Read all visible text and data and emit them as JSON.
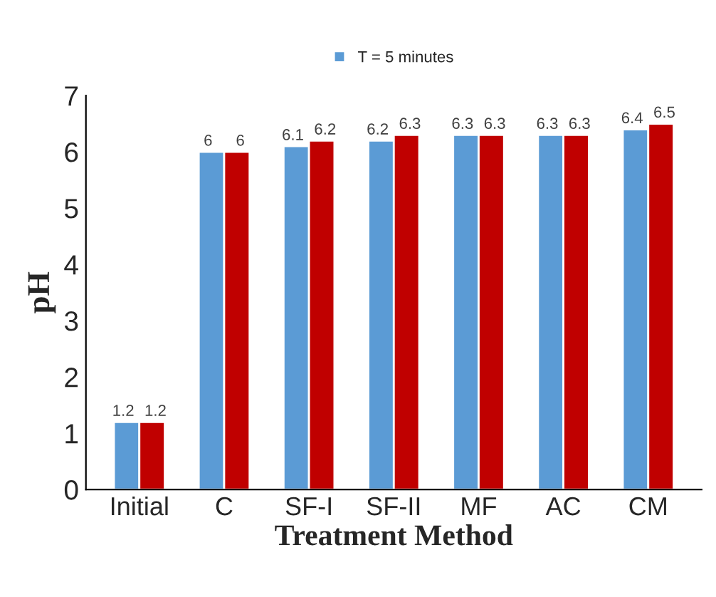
{
  "chart_data": {
    "type": "bar",
    "xlabel": "Treatment Method",
    "ylabel": "pH",
    "categories": [
      "Initial",
      "C",
      "SF-I",
      "SF-II",
      "MF",
      "AC",
      "CM"
    ],
    "series": [
      {
        "name": "T = 5 minutes",
        "color": "#5b9bd5",
        "values": [
          1.2,
          6,
          6.1,
          6.2,
          6.3,
          6.3,
          6.4
        ]
      },
      {
        "color": "#c00000",
        "values": [
          1.2,
          6,
          6.2,
          6.3,
          6.3,
          6.3,
          6.5
        ]
      }
    ],
    "ylim": [
      0,
      7
    ],
    "yticks": [
      0,
      1,
      2,
      3,
      4,
      5,
      6,
      7
    ],
    "data_labels": true,
    "grid": false,
    "legend": "top"
  }
}
